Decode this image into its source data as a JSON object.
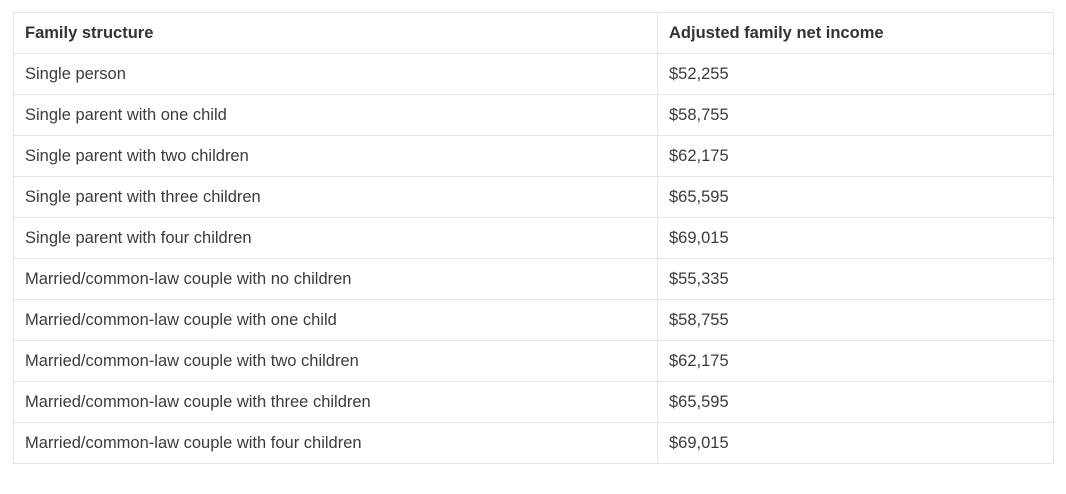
{
  "table": {
    "columns": [
      {
        "label": "Family structure"
      },
      {
        "label": "Adjusted family net income"
      }
    ],
    "rows": [
      [
        "Single person",
        "$52,255"
      ],
      [
        "Single parent with one child",
        "$58,755"
      ],
      [
        "Single parent with two children",
        "$62,175"
      ],
      [
        "Single parent with three children",
        "$65,595"
      ],
      [
        "Single parent with four children",
        "$69,015"
      ],
      [
        "Married/common-law couple with no children",
        "$55,335"
      ],
      [
        "Married/common-law couple with one child",
        "$58,755"
      ],
      [
        "Married/common-law couple with two children",
        "$62,175"
      ],
      [
        "Married/common-law couple with three children",
        "$65,595"
      ],
      [
        "Married/common-law couple with four children",
        "$69,015"
      ]
    ],
    "colors": {
      "background": "#ffffff",
      "border": "#e4e4e4",
      "text": "#3b3b3b",
      "header_text": "#333333"
    }
  }
}
